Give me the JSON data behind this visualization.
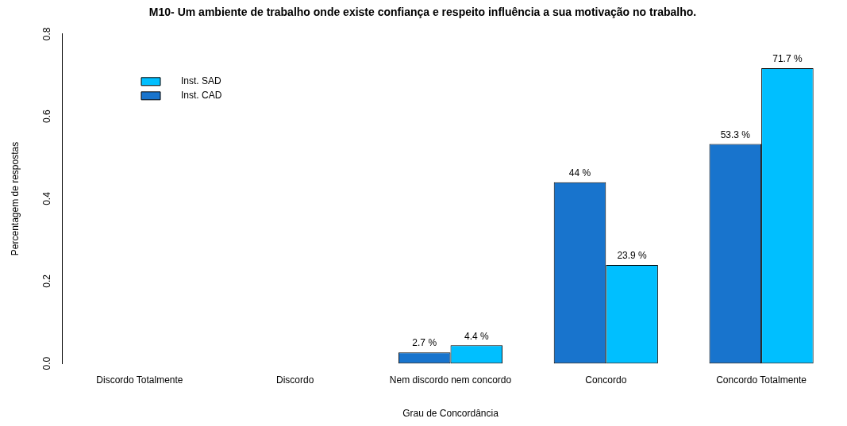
{
  "chart_data": {
    "type": "bar",
    "title": "M10- Um ambiente de trabalho onde existe confiança e respeito influência a sua motivação no trabalho.",
    "xlabel": "Grau de Concordância",
    "ylabel": "Percentagem de respostas",
    "categories": [
      "Discordo Totalmente",
      "Discordo",
      "Nem discordo nem concordo",
      "Concordo",
      "Concordo Totalmente"
    ],
    "series": [
      {
        "name": "Inst. CAD",
        "color": "#1874cd",
        "values": [
          0,
          0,
          0.027,
          0.44,
          0.533
        ],
        "value_labels": [
          null,
          null,
          "2.7 %",
          "44 %",
          "53.3 %"
        ]
      },
      {
        "name": "Inst. SAD",
        "color": "#00bfff",
        "values": [
          0,
          0,
          0.044,
          0.239,
          0.717
        ],
        "value_labels": [
          null,
          null,
          "4.4 %",
          "23.9 %",
          "71.7 %"
        ]
      }
    ],
    "ylim": [
      0,
      0.8
    ],
    "yticks": [
      {
        "value": 0,
        "label": "0.0"
      },
      0.2,
      0.4,
      0.6,
      0.8
    ],
    "grid": false,
    "legend": "top left"
  }
}
